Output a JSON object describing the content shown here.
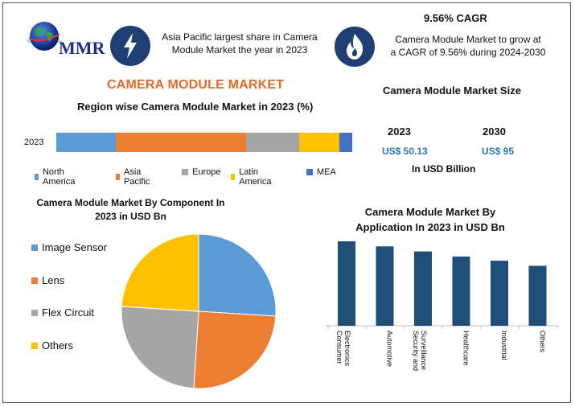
{
  "logo": {
    "text": "MMR"
  },
  "header": {
    "region_text": "Asia Pacific largest share in Camera Module Market the year in 2023",
    "region_lines": [
      "Asia Pacific largest share in Camera",
      "Module Market the year in 2023"
    ],
    "cagr_title": "9.56% CAGR",
    "cagr_lines": [
      "Camera Module Market to grow at",
      "a CAGR of 9.56% during 2024-2030"
    ]
  },
  "main_title": "CAMERA MODULE MARKET",
  "market_size": {
    "title": "Camera Module Market Size",
    "year_1": "2023",
    "year_2": "2030",
    "value_1": "US$ 50.13",
    "value_2": "US$ 95",
    "unit": "In USD Billion"
  },
  "colors": {
    "blue": "#5b9bd5",
    "orange": "#ed7d31",
    "gray": "#a5a5a5",
    "yellow": "#ffc000",
    "dark_blue": "#4472c4",
    "bar_navy": "#1f4e79",
    "title_orange": "#e06a27"
  },
  "icons": [
    "lightning-icon",
    "flame-icon",
    "globe-icon"
  ],
  "chart_data": [
    {
      "type": "bar",
      "orientation": "horizontal-stacked",
      "title": "Region wise Camera Module Market in 2023 (%)",
      "categories": [
        "2023"
      ],
      "series": [
        {
          "name": "North America",
          "values": [
            19
          ]
        },
        {
          "name": "Asia Pacific",
          "values": [
            42
          ]
        },
        {
          "name": "Europe",
          "values": [
            17
          ]
        },
        {
          "name": "Latin America",
          "values": [
            13
          ]
        },
        {
          "name": "MEA",
          "values": [
            4
          ]
        }
      ],
      "legend": "bottom"
    },
    {
      "type": "pie",
      "title_lines": [
        "Camera Module Market By Component In",
        "2023 in USD Bn"
      ],
      "categories": [
        "Image Sensor",
        "Lens",
        "Flex Circuit",
        "Others"
      ],
      "values": [
        26,
        25,
        25,
        24
      ],
      "legend": "left"
    },
    {
      "type": "bar",
      "title_lines": [
        "Camera Module Market By",
        "Application In 2023 in USD Bn"
      ],
      "categories": [
        [
          "Consumer",
          "Electronics"
        ],
        [
          "Automotive"
        ],
        [
          "Security and",
          "Surveillance"
        ],
        [
          "Healthcare"
        ],
        [
          "Industrial"
        ],
        [
          "Others"
        ]
      ],
      "values": [
        100,
        94,
        88,
        82,
        77,
        71
      ],
      "ylim": [
        0,
        100
      ]
    }
  ]
}
